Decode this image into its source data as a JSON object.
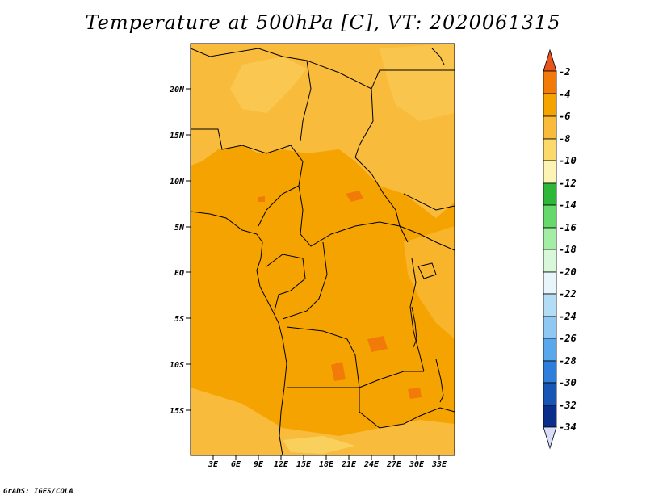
{
  "title": "Temperature at 500hPa [C], VT: 2020061315",
  "credit": "GrADS: IGES/COLA",
  "map": {
    "lat_ticks": [
      "20N",
      "15N",
      "10N",
      "5N",
      "EQ",
      "5S",
      "10S",
      "15S"
    ],
    "lon_ticks": [
      "3E",
      "6E",
      "9E",
      "12E",
      "15E",
      "18E",
      "21E",
      "24E",
      "27E",
      "30E",
      "33E"
    ]
  },
  "colorbar": {
    "labels": [
      "-2",
      "-4",
      "-6",
      "-8",
      "-10",
      "-12",
      "-14",
      "-16",
      "-18",
      "-20",
      "-22",
      "-24",
      "-26",
      "-28",
      "-30",
      "-32",
      "-34"
    ],
    "colors": [
      "#e8541c",
      "#f27a08",
      "#f5a300",
      "#f9bb3c",
      "#fbd96b",
      "#fdf3b5",
      "#2db83a",
      "#66d96b",
      "#a4eda4",
      "#d9f7d9",
      "#e8f6fb",
      "#b3ddf5",
      "#8fc8f2",
      "#5aa8ec",
      "#2e7fdc",
      "#1756b5",
      "#0a2f8a",
      "#061a66",
      "#d9dcfb"
    ]
  }
}
